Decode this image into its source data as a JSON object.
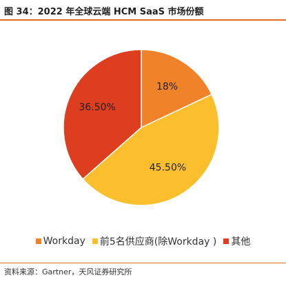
{
  "header": {
    "title": "图 34：2022 年全球云端 HCM SaaS 市场份额"
  },
  "footer": {
    "source": "资料来源：Gartner，天风证券研究所"
  },
  "colors": {
    "accent": "#e2681c"
  },
  "chart_data": {
    "type": "pie",
    "title": "",
    "categories": [
      "Workday",
      "前5名供应商(除Workday )",
      "其他"
    ],
    "values": [
      18,
      45.5,
      36.5
    ],
    "labels": [
      "18%",
      "45.50%",
      "36.50%"
    ],
    "colors": [
      "#f0822a",
      "#fbbf2d",
      "#dd3e1f"
    ],
    "legend_position": "bottom"
  }
}
